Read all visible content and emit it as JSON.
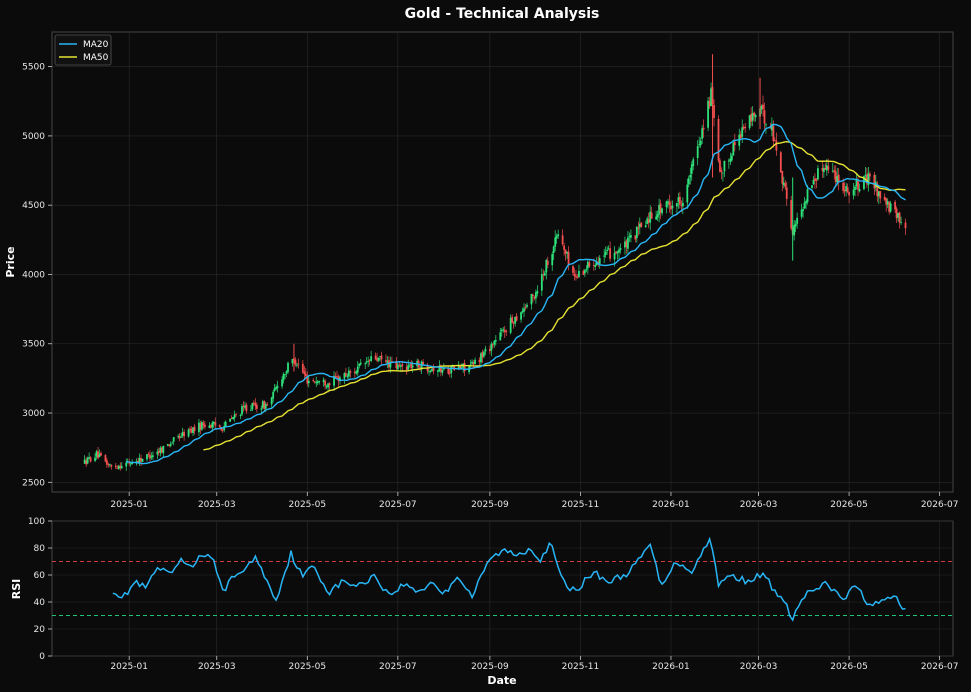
{
  "chart_data": [
    {
      "type": "candlestick",
      "title": "Gold - Technical Analysis",
      "ylabel": "Price",
      "xlabel": "",
      "ylim": [
        2430,
        5750
      ],
      "yticks": [
        2500,
        3000,
        3500,
        4000,
        4500,
        5000,
        5500
      ],
      "grid": true,
      "legend_position": "top-left",
      "legend": [
        {
          "name": "MA20",
          "color": "#29b6f6"
        },
        {
          "name": "MA50",
          "color": "#e6e233"
        }
      ],
      "colors": {
        "up": "#2ee27a",
        "down": "#f44f4f",
        "ma20": "#29b6f6",
        "ma50": "#e6e233",
        "background": "#0b0b0b",
        "grid": "#2a2a2a"
      },
      "price_anchors": [
        [
          "2024-12-01",
          2640
        ],
        [
          "2024-12-10",
          2700
        ],
        [
          "2024-12-20",
          2610
        ],
        [
          "2025-01-05",
          2650
        ],
        [
          "2025-01-20",
          2720
        ],
        [
          "2025-02-05",
          2840
        ],
        [
          "2025-02-20",
          2920
        ],
        [
          "2025-03-05",
          2900
        ],
        [
          "2025-03-20",
          3040
        ],
        [
          "2025-04-05",
          3060
        ],
        [
          "2025-04-12",
          3230
        ],
        [
          "2025-04-22",
          3400
        ],
        [
          "2025-05-01",
          3240
        ],
        [
          "2025-05-15",
          3220
        ],
        [
          "2025-06-01",
          3300
        ],
        [
          "2025-06-15",
          3400
        ],
        [
          "2025-07-01",
          3330
        ],
        [
          "2025-07-15",
          3350
        ],
        [
          "2025-08-01",
          3310
        ],
        [
          "2025-08-20",
          3340
        ],
        [
          "2025-09-01",
          3480
        ],
        [
          "2025-09-15",
          3650
        ],
        [
          "2025-10-01",
          3850
        ],
        [
          "2025-10-17",
          4300
        ],
        [
          "2025-10-28",
          3980
        ],
        [
          "2025-11-10",
          4100
        ],
        [
          "2025-12-01",
          4200
        ],
        [
          "2025-12-20",
          4450
        ],
        [
          "2026-01-10",
          4550
        ],
        [
          "2026-01-28",
          5300
        ],
        [
          "2026-02-03",
          4700
        ],
        [
          "2026-02-15",
          5000
        ],
        [
          "2026-03-01",
          5200
        ],
        [
          "2026-03-10",
          5050
        ],
        [
          "2026-03-20",
          4550
        ],
        [
          "2026-03-24",
          4300
        ],
        [
          "2026-04-05",
          4650
        ],
        [
          "2026-04-15",
          4800
        ],
        [
          "2026-05-01",
          4600
        ],
        [
          "2026-05-15",
          4700
        ],
        [
          "2026-05-25",
          4520
        ],
        [
          "2026-06-08",
          4350
        ]
      ],
      "ma20_start": "2024-12-30",
      "ma50_start": "2025-02-20",
      "x_start": "2024-12-01",
      "x_end": "2026-06-08"
    },
    {
      "type": "line",
      "title": "",
      "ylabel": "RSI",
      "xlabel": "Date",
      "ylim": [
        0,
        100
      ],
      "yticks": [
        0,
        20,
        40,
        60,
        80,
        100
      ],
      "xticks": [
        "2025-01",
        "2025-03",
        "2025-05",
        "2025-07",
        "2025-09",
        "2025-11",
        "2026-01",
        "2026-03",
        "2026-05",
        "2026-07"
      ],
      "xlim": [
        "2024-11-10",
        "2026-07-10"
      ],
      "overbought": 70,
      "oversold": 30,
      "colors": {
        "line": "#29b6f6",
        "overbought": "#d13d3d",
        "oversold": "#1fc27a"
      },
      "rsi_anchors": [
        [
          "2024-12-21",
          49
        ],
        [
          "2024-12-28",
          43
        ],
        [
          "2025-01-05",
          55
        ],
        [
          "2025-01-12",
          50
        ],
        [
          "2025-01-20",
          65
        ],
        [
          "2025-01-28",
          60
        ],
        [
          "2025-02-05",
          70
        ],
        [
          "2025-02-12",
          67
        ],
        [
          "2025-02-20",
          76
        ],
        [
          "2025-02-28",
          68
        ],
        [
          "2025-03-05",
          48
        ],
        [
          "2025-03-12",
          58
        ],
        [
          "2025-03-20",
          65
        ],
        [
          "2025-03-28",
          73
        ],
        [
          "2025-04-05",
          52
        ],
        [
          "2025-04-10",
          42
        ],
        [
          "2025-04-20",
          76
        ],
        [
          "2025-04-28",
          58
        ],
        [
          "2025-05-05",
          68
        ],
        [
          "2025-05-15",
          47
        ],
        [
          "2025-05-25",
          55
        ],
        [
          "2025-06-05",
          52
        ],
        [
          "2025-06-15",
          60
        ],
        [
          "2025-06-25",
          45
        ],
        [
          "2025-07-05",
          53
        ],
        [
          "2025-07-15",
          48
        ],
        [
          "2025-07-25",
          55
        ],
        [
          "2025-08-01",
          45
        ],
        [
          "2025-08-10",
          60
        ],
        [
          "2025-08-20",
          44
        ],
        [
          "2025-09-01",
          72
        ],
        [
          "2025-09-10",
          78
        ],
        [
          "2025-09-20",
          75
        ],
        [
          "2025-09-28",
          80
        ],
        [
          "2025-10-05",
          72
        ],
        [
          "2025-10-12",
          83
        ],
        [
          "2025-10-20",
          55
        ],
        [
          "2025-10-28",
          48
        ],
        [
          "2025-11-10",
          62
        ],
        [
          "2025-11-20",
          55
        ],
        [
          "2025-12-01",
          60
        ],
        [
          "2025-12-10",
          70
        ],
        [
          "2025-12-18",
          83
        ],
        [
          "2025-12-25",
          53
        ],
        [
          "2026-01-05",
          70
        ],
        [
          "2026-01-15",
          63
        ],
        [
          "2026-01-28",
          88
        ],
        [
          "2026-02-02",
          52
        ],
        [
          "2026-02-10",
          60
        ],
        [
          "2026-02-20",
          56
        ],
        [
          "2026-03-05",
          60
        ],
        [
          "2026-03-12",
          48
        ],
        [
          "2026-03-20",
          36
        ],
        [
          "2026-03-24",
          28
        ],
        [
          "2026-04-01",
          45
        ],
        [
          "2026-04-15",
          53
        ],
        [
          "2026-04-28",
          42
        ],
        [
          "2026-05-05",
          52
        ],
        [
          "2026-05-15",
          38
        ],
        [
          "2026-05-25",
          40
        ],
        [
          "2026-06-01",
          45
        ],
        [
          "2026-06-08",
          33
        ]
      ]
    }
  ]
}
